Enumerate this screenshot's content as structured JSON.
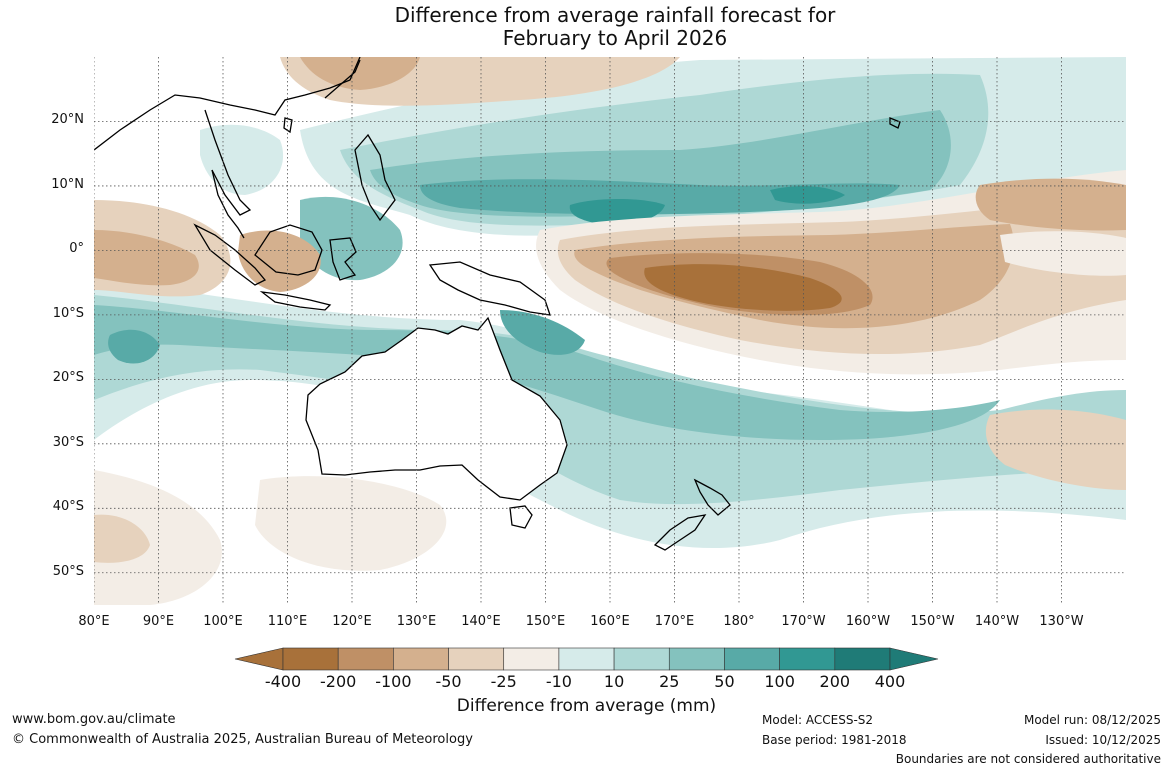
{
  "title": {
    "line1": "Difference from average rainfall forecast for",
    "line2": "February to April 2026"
  },
  "map": {
    "projection": "equirectangular",
    "lon_range": [
      80,
      240
    ],
    "lat_range": [
      -55,
      30
    ],
    "lat_labels": [
      {
        "lat": 20,
        "text": "20°N"
      },
      {
        "lat": 10,
        "text": "10°N"
      },
      {
        "lat": 0,
        "text": "0°"
      },
      {
        "lat": -10,
        "text": "10°S"
      },
      {
        "lat": -20,
        "text": "20°S"
      },
      {
        "lat": -30,
        "text": "30°S"
      },
      {
        "lat": -40,
        "text": "40°S"
      },
      {
        "lat": -50,
        "text": "50°S"
      }
    ],
    "lon_labels": [
      {
        "lon": 80,
        "text": "80°E"
      },
      {
        "lon": 90,
        "text": "90°E"
      },
      {
        "lon": 100,
        "text": "100°E"
      },
      {
        "lon": 110,
        "text": "110°E"
      },
      {
        "lon": 120,
        "text": "120°E"
      },
      {
        "lon": 130,
        "text": "130°E"
      },
      {
        "lon": 140,
        "text": "140°E"
      },
      {
        "lon": 150,
        "text": "150°E"
      },
      {
        "lon": 160,
        "text": "160°E"
      },
      {
        "lon": 170,
        "text": "170°E"
      },
      {
        "lon": 180,
        "text": "180°"
      },
      {
        "lon": 190,
        "text": "170°W"
      },
      {
        "lon": 200,
        "text": "160°W"
      },
      {
        "lon": 210,
        "text": "150°W"
      },
      {
        "lon": 220,
        "text": "140°W"
      },
      {
        "lon": 230,
        "text": "130°W"
      }
    ]
  },
  "legend": {
    "title": "Difference from average (mm)",
    "ticks": [
      "-400",
      "-200",
      "-100",
      "-50",
      "-25",
      "-10",
      "10",
      "25",
      "50",
      "100",
      "200",
      "400"
    ],
    "colors": [
      "#a8713a",
      "#bf9066",
      "#d4b08e",
      "#e6d2bd",
      "#f3ede6",
      "#ffffff",
      "#d6ebea",
      "#aed8d5",
      "#84c2be",
      "#58aaa7",
      "#319893",
      "#1f7b77"
    ],
    "under_color": "#a8713a",
    "over_color": "#1f7b77"
  },
  "footer": {
    "website": "www.bom.gov.au/climate",
    "copyright": "© Commonwealth of Australia 2025, Australian Bureau of Meteorology",
    "model": "Model: ACCESS-S2",
    "base_period": "Base period: 1981-2018",
    "model_run": "Model run: 08/12/2025",
    "issued": "Issued: 10/12/2025",
    "disclaimer": "Boundaries are not considered authoritative"
  }
}
